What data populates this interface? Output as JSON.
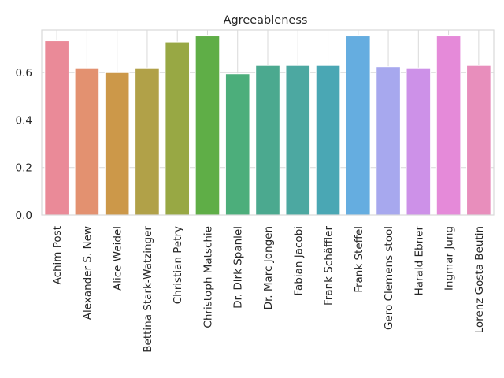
{
  "chart_data": {
    "type": "bar",
    "title": "Agreeableness",
    "xlabel": "",
    "ylabel": "",
    "ylim": [
      0,
      0.78
    ],
    "yticks": [
      "0.0",
      "0.2",
      "0.4",
      "0.6"
    ],
    "grid": true,
    "categories": [
      "Achim Post",
      "Alexander S. New",
      "Alice Weidel",
      "Bettina Stark-Watzinger",
      "Christian Petry",
      "Christoph Matschie",
      "Dr. Dirk Spaniel",
      "Dr. Marc Jongen",
      "Fabian Jacobi",
      "Frank Schäffler",
      "Frank Steffel",
      "Gero Clemens stool",
      "Harald Ebner",
      "Ingmar Jung",
      "Lorenz Gosta Beutin"
    ],
    "values": [
      0.735,
      0.62,
      0.6,
      0.62,
      0.73,
      0.755,
      0.595,
      0.63,
      0.63,
      0.63,
      0.755,
      0.625,
      0.62,
      0.755,
      0.63
    ],
    "colors": [
      "#ea8a98",
      "#e39170",
      "#cc9849",
      "#b1a148",
      "#98a844",
      "#5fae47",
      "#4cae7b",
      "#4ba98f",
      "#4ca8a1",
      "#4aa7b4",
      "#65ade0",
      "#a7a8ee",
      "#cd91e8",
      "#e58ad9",
      "#e88ebc"
    ],
    "colors_meaning": "one hue per category (husl palette)"
  }
}
